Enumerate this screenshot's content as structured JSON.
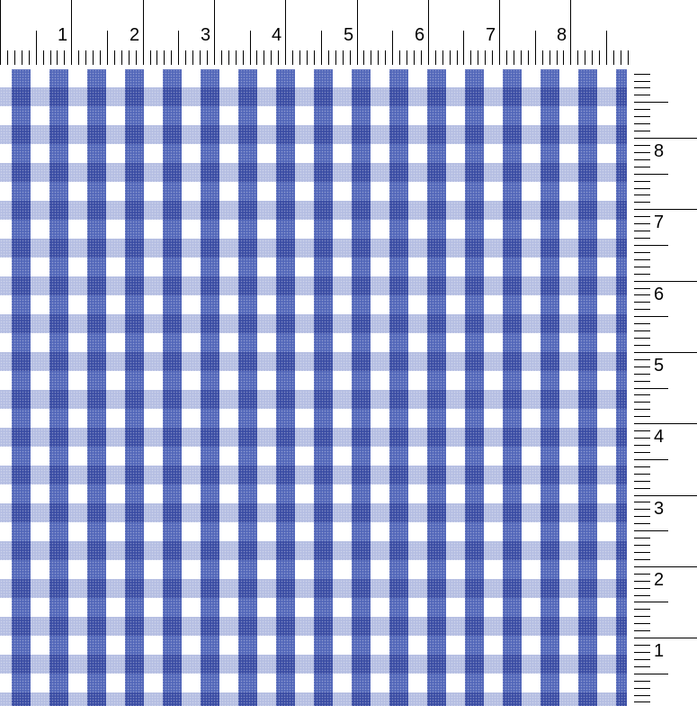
{
  "top_ruler": {
    "labels": [
      "1",
      "2",
      "3",
      "4",
      "5",
      "6",
      "7",
      "8"
    ],
    "unit_divisions": 10
  },
  "right_ruler": {
    "labels": [
      "8",
      "7",
      "6",
      "5",
      "4",
      "3",
      "2",
      "1"
    ],
    "unit_divisions": 10
  },
  "pattern": {
    "type": "gingham",
    "colors": {
      "stripe": "#2D46AA",
      "intersection": "#2540A5",
      "light_band": "#B4BFE6",
      "background": "#FFFFFF"
    }
  }
}
